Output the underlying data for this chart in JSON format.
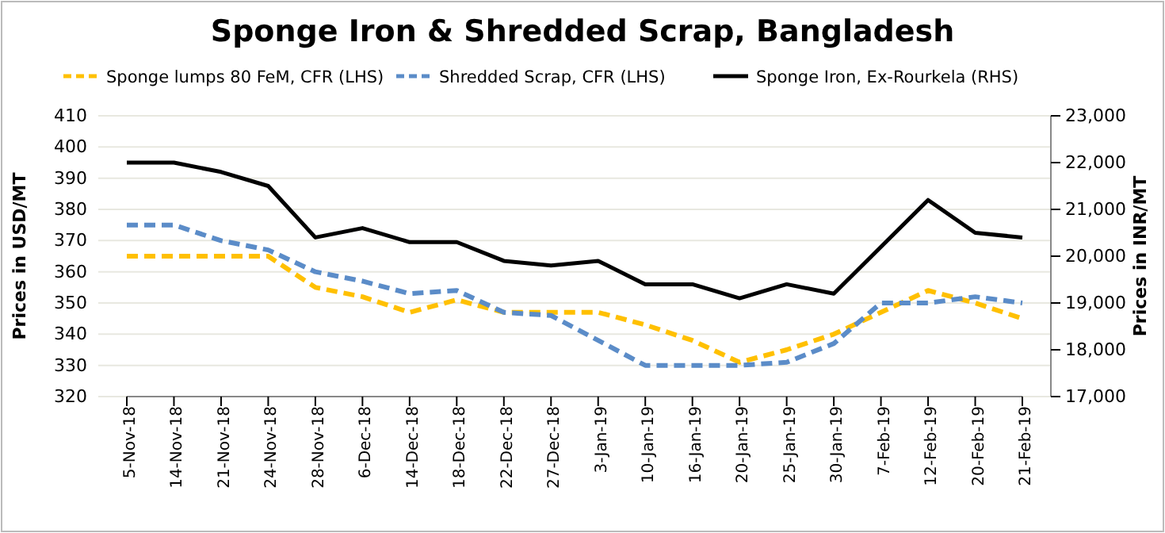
{
  "chart_data": {
    "type": "line",
    "title": "Sponge Iron & Shredded Scrap, Bangladesh",
    "ylabel": "Prices in USD/MT",
    "y2label": "Prices in INR/MT",
    "categories": [
      "5-Nov-18",
      "14-Nov-18",
      "21-Nov-18",
      "24-Nov-18",
      "28-Nov-18",
      "6-Dec-18",
      "14-Dec-18",
      "18-Dec-18",
      "22-Dec-18",
      "27-Dec-18",
      "3-Jan-19",
      "10-Jan-19",
      "16-Jan-19",
      "20-Jan-19",
      "25-Jan-19",
      "30-Jan-19",
      "7-Feb-19",
      "12-Feb-19",
      "20-Feb-19",
      "21-Feb-19"
    ],
    "series": [
      {
        "name": "Sponge lumps 80 FeM, CFR (LHS)",
        "color": "#ffc000",
        "line_style": "dashed",
        "values": [
          365,
          365,
          365,
          365,
          355,
          352,
          347,
          351,
          347,
          347,
          347,
          343,
          338,
          331,
          335,
          340,
          347,
          354,
          350,
          345
        ]
      },
      {
        "name": "Shredded Scrap, CFR (LHS)",
        "color": "#5b8cc8",
        "line_style": "dashed",
        "values": [
          375,
          375,
          370,
          367,
          360,
          357,
          353,
          354,
          347,
          346,
          338,
          330,
          330,
          330,
          331,
          337,
          350,
          350,
          352,
          350
        ]
      },
      {
        "name": "Sponge Iron, Ex-Rourkela (RHS)",
        "color": "#000000",
        "line_style": "solid",
        "axis": "y2",
        "values": [
          22000,
          22000,
          21800,
          21500,
          20400,
          20600,
          20300,
          20300,
          19900,
          19800,
          19900,
          19400,
          19400,
          19100,
          19400,
          19200,
          20200,
          21200,
          20500,
          20400
        ]
      }
    ],
    "ylim": [
      320,
      410
    ],
    "yticks": [
      320,
      330,
      340,
      350,
      360,
      370,
      380,
      390,
      400,
      410
    ],
    "y2lim": [
      17000,
      23000
    ],
    "y2ticks": [
      {
        "value": 17000,
        "label": "17,000"
      },
      {
        "value": 18000,
        "label": "18,000"
      },
      {
        "value": 19000,
        "label": "19,000"
      },
      {
        "value": 20000,
        "label": "20,000"
      },
      {
        "value": 21000,
        "label": "21,000"
      },
      {
        "value": 22000,
        "label": "22,000"
      },
      {
        "value": 23000,
        "label": "23,000"
      }
    ],
    "grid": "y",
    "legend": "top",
    "marker": "none"
  }
}
